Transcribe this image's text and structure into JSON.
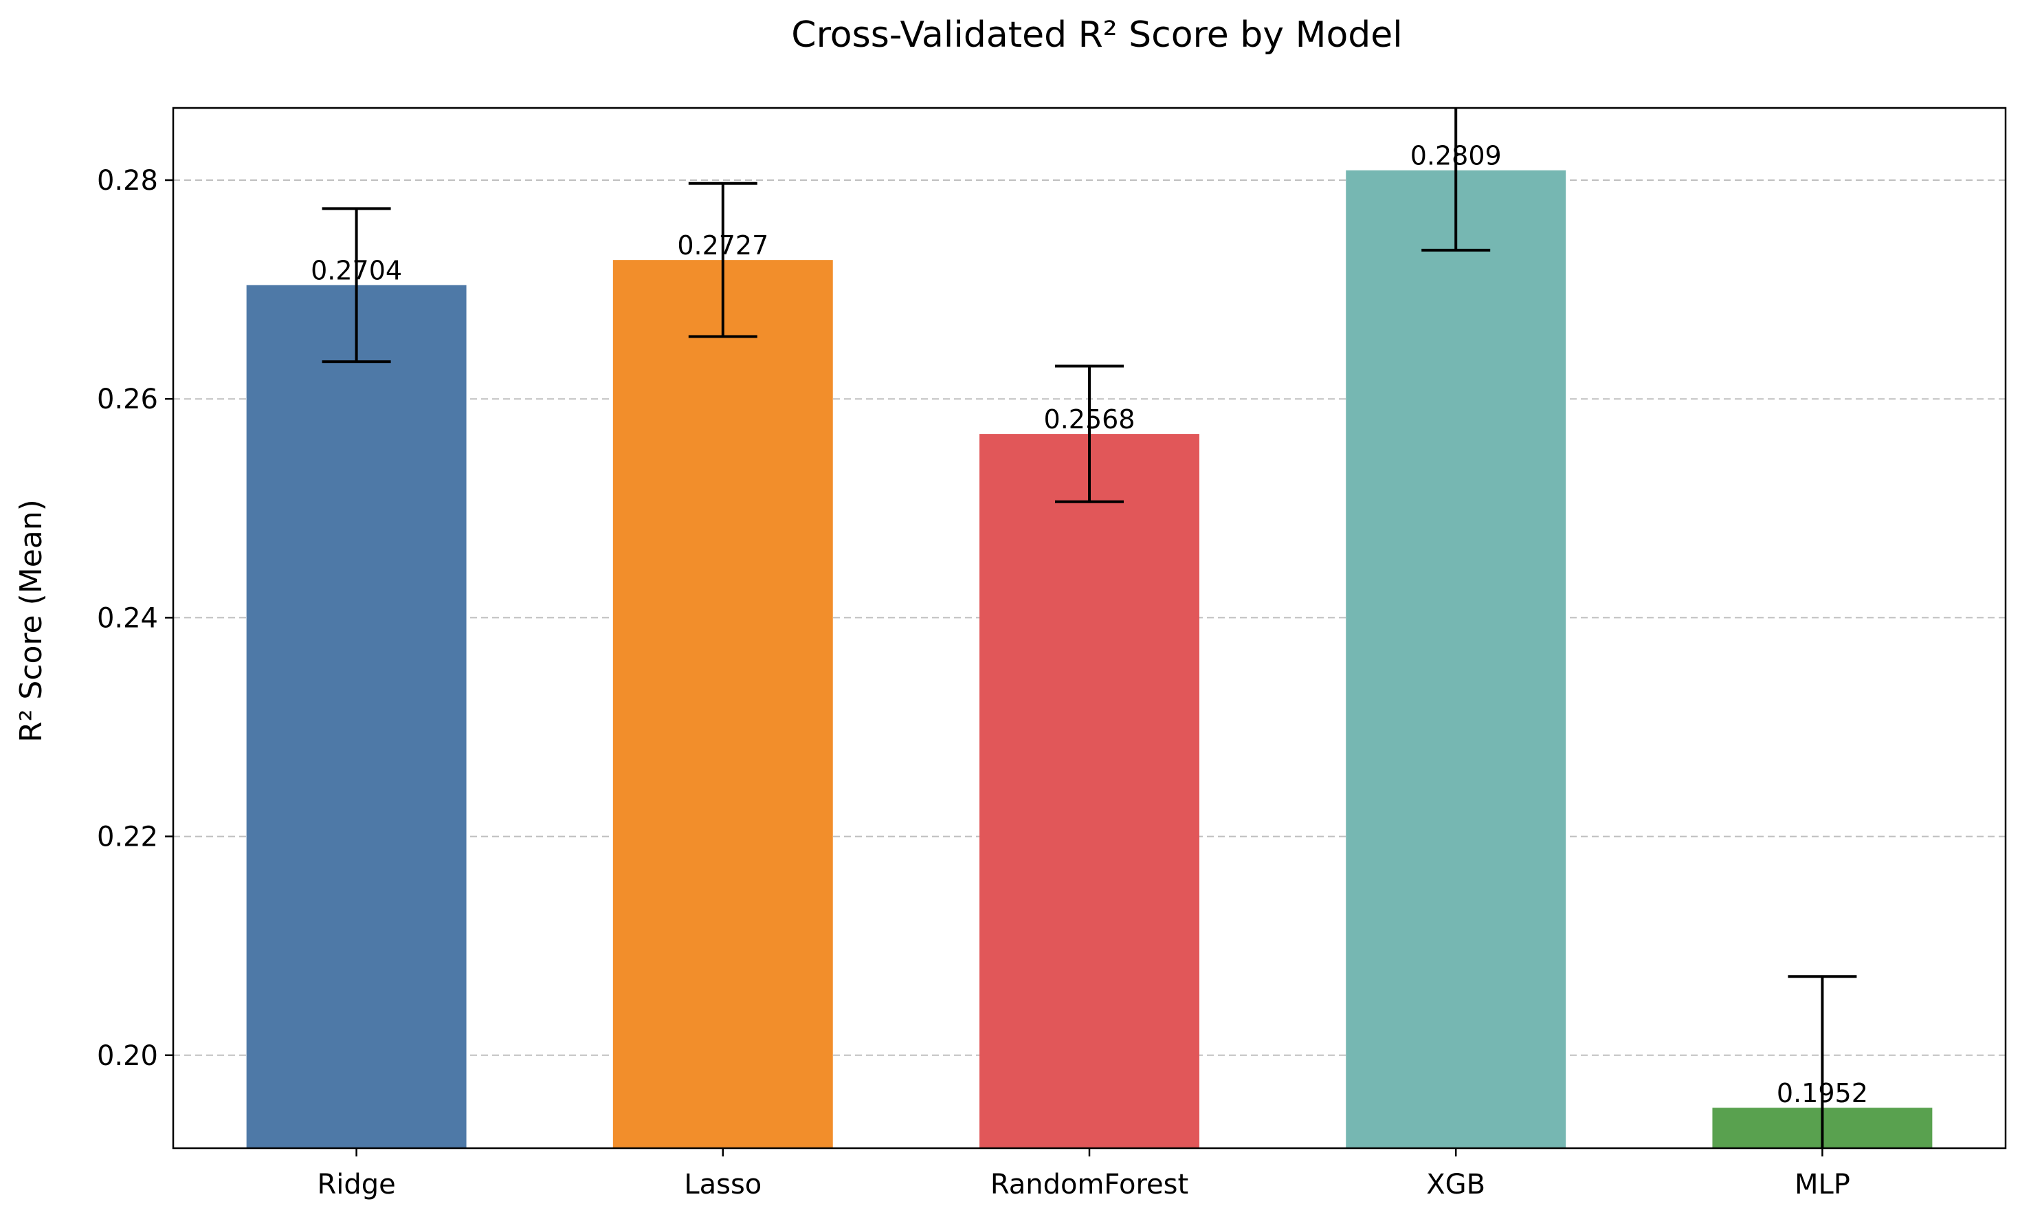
{
  "chart_data": {
    "type": "bar",
    "title": "Cross-Validated R² Score by Model",
    "xlabel": "",
    "ylabel": "R² Score (Mean)",
    "categories": [
      "Ridge",
      "Lasso",
      "RandomForest",
      "XGB",
      "MLP"
    ],
    "values": [
      0.2704,
      0.2727,
      0.2568,
      0.2809,
      0.1952
    ],
    "errors": [
      0.007,
      0.007,
      0.0062,
      0.0073,
      0.012
    ],
    "value_labels": [
      "0.2704",
      "0.2727",
      "0.2568",
      "0.2809",
      "0.1952"
    ],
    "colors": [
      "#4e79a7",
      "#f28e2b",
      "#e15759",
      "#76b7b2",
      "#59a14f"
    ],
    "ylim": [
      0.1915,
      0.2866
    ],
    "yticks": [
      0.2,
      0.22,
      0.24,
      0.26,
      0.28
    ],
    "ytick_labels": [
      "0.20",
      "0.22",
      "0.24",
      "0.26",
      "0.28"
    ],
    "grid": "y-dashed",
    "legend": "none"
  }
}
